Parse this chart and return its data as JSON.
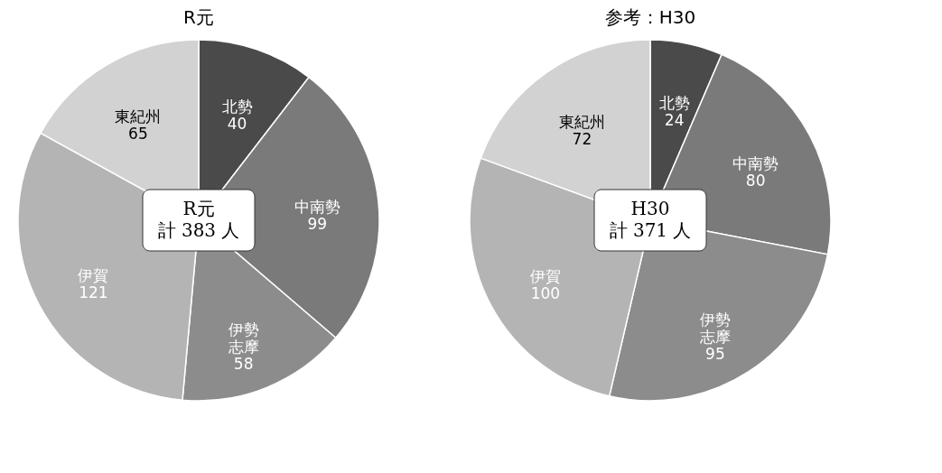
{
  "chart_data": [
    {
      "type": "pie",
      "title": "R元",
      "categories": [
        "北勢",
        "中南勢",
        "伊勢志摩",
        "伊賀",
        "東紀州"
      ],
      "values": [
        40,
        99,
        58,
        121,
        65
      ],
      "colors": [
        "#4a4a4a",
        "#7a7a7a",
        "#8c8c8c",
        "#b4b4b4",
        "#d2d2d2"
      ],
      "data_labels": true,
      "legend": false,
      "annotations": [
        "R元",
        "計 383 人"
      ]
    },
    {
      "type": "pie",
      "title": "参考：H30",
      "categories": [
        "北勢",
        "中南勢",
        "伊勢志摩",
        "伊賀",
        "東紀州"
      ],
      "values": [
        24,
        80,
        95,
        100,
        72
      ],
      "colors": [
        "#4a4a4a",
        "#7a7a7a",
        "#8c8c8c",
        "#b4b4b4",
        "#d2d2d2"
      ],
      "data_labels": true,
      "legend": false,
      "annotations": [
        "H30",
        "計 371 人"
      ]
    }
  ]
}
